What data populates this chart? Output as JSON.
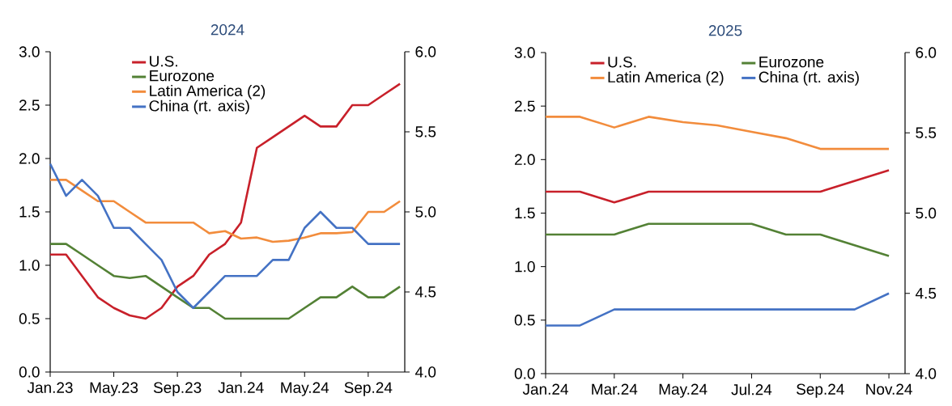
{
  "chart_data": [
    {
      "type": "line",
      "title": "2024",
      "categories": [
        "Jan.23",
        null,
        null,
        null,
        "May.23",
        null,
        null,
        null,
        "Sep.23",
        null,
        null,
        null,
        "Jan.24",
        null,
        null,
        null,
        "May.24",
        null,
        null,
        null,
        "Sep.24",
        null,
        null
      ],
      "series": [
        {
          "name": "U.S.",
          "color": "#c8202a",
          "values": [
            1.1,
            1.1,
            0.9,
            0.7,
            0.6,
            0.53,
            0.5,
            0.6,
            0.8,
            0.9,
            1.1,
            1.2,
            1.4,
            2.1,
            2.2,
            2.3,
            2.4,
            2.3,
            2.3,
            2.5,
            2.5,
            2.6,
            2.7
          ]
        },
        {
          "name": "Eurozone",
          "color": "#538135",
          "values": [
            1.2,
            1.2,
            1.1,
            1.0,
            0.9,
            0.88,
            0.9,
            0.8,
            0.7,
            0.6,
            0.6,
            0.5,
            0.5,
            0.5,
            0.5,
            0.5,
            0.6,
            0.7,
            0.7,
            0.8,
            0.7,
            0.7,
            0.8
          ]
        },
        {
          "name": "Latin America (2)",
          "color": "#f28c3c",
          "values": [
            1.8,
            1.8,
            1.7,
            1.6,
            1.6,
            1.5,
            1.4,
            1.4,
            1.4,
            1.4,
            1.3,
            1.32,
            1.25,
            1.26,
            1.22,
            1.23,
            1.26,
            1.3,
            1.3,
            1.31,
            1.5,
            1.5,
            1.6
          ]
        },
        {
          "name": "China (rt. axis)",
          "color": "#4472c4",
          "axis": "y2",
          "values": [
            5.3,
            5.1,
            5.2,
            5.1,
            4.9,
            4.9,
            4.8,
            4.7,
            4.5,
            4.4,
            4.5,
            4.6,
            4.6,
            4.6,
            4.7,
            4.7,
            4.9,
            5.0,
            4.9,
            4.9,
            4.8,
            4.8,
            4.8
          ]
        }
      ],
      "ylim": [
        0,
        3
      ],
      "yticks": [
        {
          "value": 0,
          "label": "0.0"
        },
        {
          "value": 0.5,
          "label": "0.5"
        },
        {
          "value": 1,
          "label": "1.0"
        },
        {
          "value": 1.5,
          "label": "1.5"
        },
        {
          "value": 2,
          "label": "2.0"
        },
        {
          "value": 2.5,
          "label": "2.5"
        },
        {
          "value": 3,
          "label": "3.0"
        }
      ],
      "y2lim": [
        4,
        6
      ],
      "y2ticks": [
        {
          "value": 4,
          "label": "4.0"
        },
        {
          "value": 4.5,
          "label": "4.5"
        },
        {
          "value": 5,
          "label": "5.0"
        },
        {
          "value": 5.5,
          "label": "5.5"
        },
        {
          "value": 6,
          "label": "6.0"
        }
      ],
      "legend": "top"
    },
    {
      "type": "line",
      "title": "2025",
      "categories": [
        "Jan.24",
        null,
        "Mar.24",
        null,
        "May.24",
        null,
        "Jul.24",
        null,
        "Sep.24",
        null,
        "Nov.24"
      ],
      "series": [
        {
          "name": "U.S.",
          "color": "#c8202a",
          "values": [
            1.7,
            1.7,
            1.6,
            1.7,
            1.7,
            1.7,
            1.7,
            1.7,
            1.7,
            1.8,
            1.9
          ]
        },
        {
          "name": "Eurozone",
          "color": "#538135",
          "values": [
            1.3,
            1.3,
            1.3,
            1.4,
            1.4,
            1.4,
            1.4,
            1.3,
            1.3,
            1.2,
            1.1
          ]
        },
        {
          "name": "Latin America (2)",
          "color": "#f28c3c",
          "values": [
            2.4,
            2.4,
            2.3,
            2.4,
            2.35,
            2.32,
            2.26,
            2.2,
            2.1,
            2.1,
            2.1
          ]
        },
        {
          "name": "China (rt. axis)",
          "color": "#4472c4",
          "axis": "y2",
          "values": [
            4.3,
            4.3,
            4.4,
            4.4,
            4.4,
            4.4,
            4.4,
            4.4,
            4.4,
            4.4,
            4.5
          ]
        }
      ],
      "ylim": [
        0,
        3
      ],
      "yticks": [
        {
          "value": 0,
          "label": "0.0"
        },
        {
          "value": 0.5,
          "label": "0.5"
        },
        {
          "value": 1,
          "label": "1.0"
        },
        {
          "value": 1.5,
          "label": "1.5"
        },
        {
          "value": 2,
          "label": "2.0"
        },
        {
          "value": 2.5,
          "label": "2.5"
        },
        {
          "value": 3,
          "label": "3.0"
        }
      ],
      "y2lim": [
        4,
        6
      ],
      "y2ticks": [
        {
          "value": 4,
          "label": "4.0"
        },
        {
          "value": 4.5,
          "label": "4.5"
        },
        {
          "value": 5,
          "label": "5.0"
        },
        {
          "value": 5.5,
          "label": "5.5"
        },
        {
          "value": 6,
          "label": "6.0"
        }
      ],
      "legend": "top"
    }
  ]
}
